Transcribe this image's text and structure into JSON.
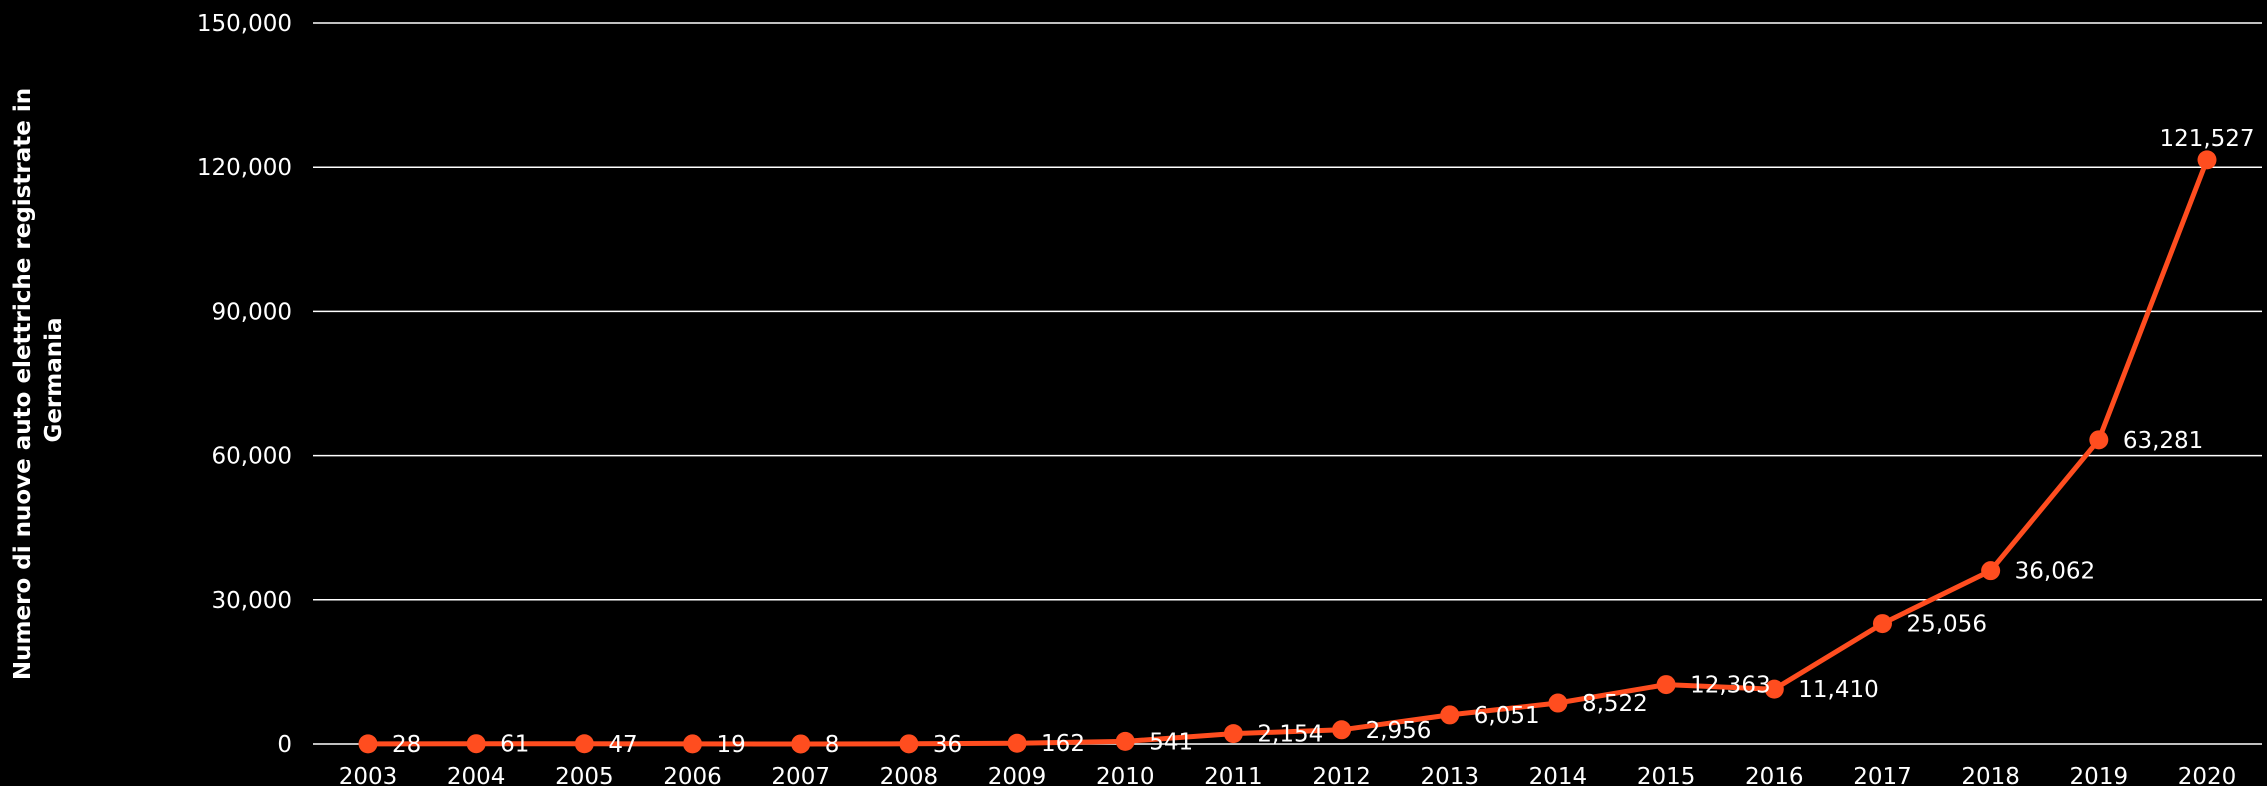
{
  "chart_data": {
    "type": "line",
    "title": "",
    "xlabel": "",
    "ylabel_lines": [
      "Numero di nuove auto elettriche registrate in",
      "Germania"
    ],
    "x": [
      "2003",
      "2004",
      "2005",
      "2006",
      "2007",
      "2008",
      "2009",
      "2010",
      "2011",
      "2012",
      "2013",
      "2014",
      "2015",
      "2016",
      "2017",
      "2018",
      "2019",
      "2020"
    ],
    "values": [
      28,
      61,
      47,
      19,
      8,
      36,
      162,
      541,
      2154,
      2956,
      6051,
      8522,
      12363,
      11410,
      25056,
      36062,
      63281,
      121527
    ],
    "data_labels": [
      "28",
      "61",
      "47",
      "19",
      "8",
      "36",
      "162",
      "541",
      "2,154",
      "2,956",
      "6,051",
      "8,522",
      "12,363",
      "11,410",
      "25,056",
      "36,062",
      "63,281",
      "121,527"
    ],
    "yticks": [
      0,
      30000,
      60000,
      90000,
      120000,
      150000
    ],
    "ytick_labels": [
      "0",
      "30,000",
      "60,000",
      "90,000",
      "120,000",
      "150,000"
    ],
    "ylim": [
      0,
      150000
    ],
    "grid": true,
    "colors": {
      "line": "#ff4d1f",
      "grid": "#ffffff",
      "text": "#ffffff",
      "background": "#000000"
    }
  }
}
